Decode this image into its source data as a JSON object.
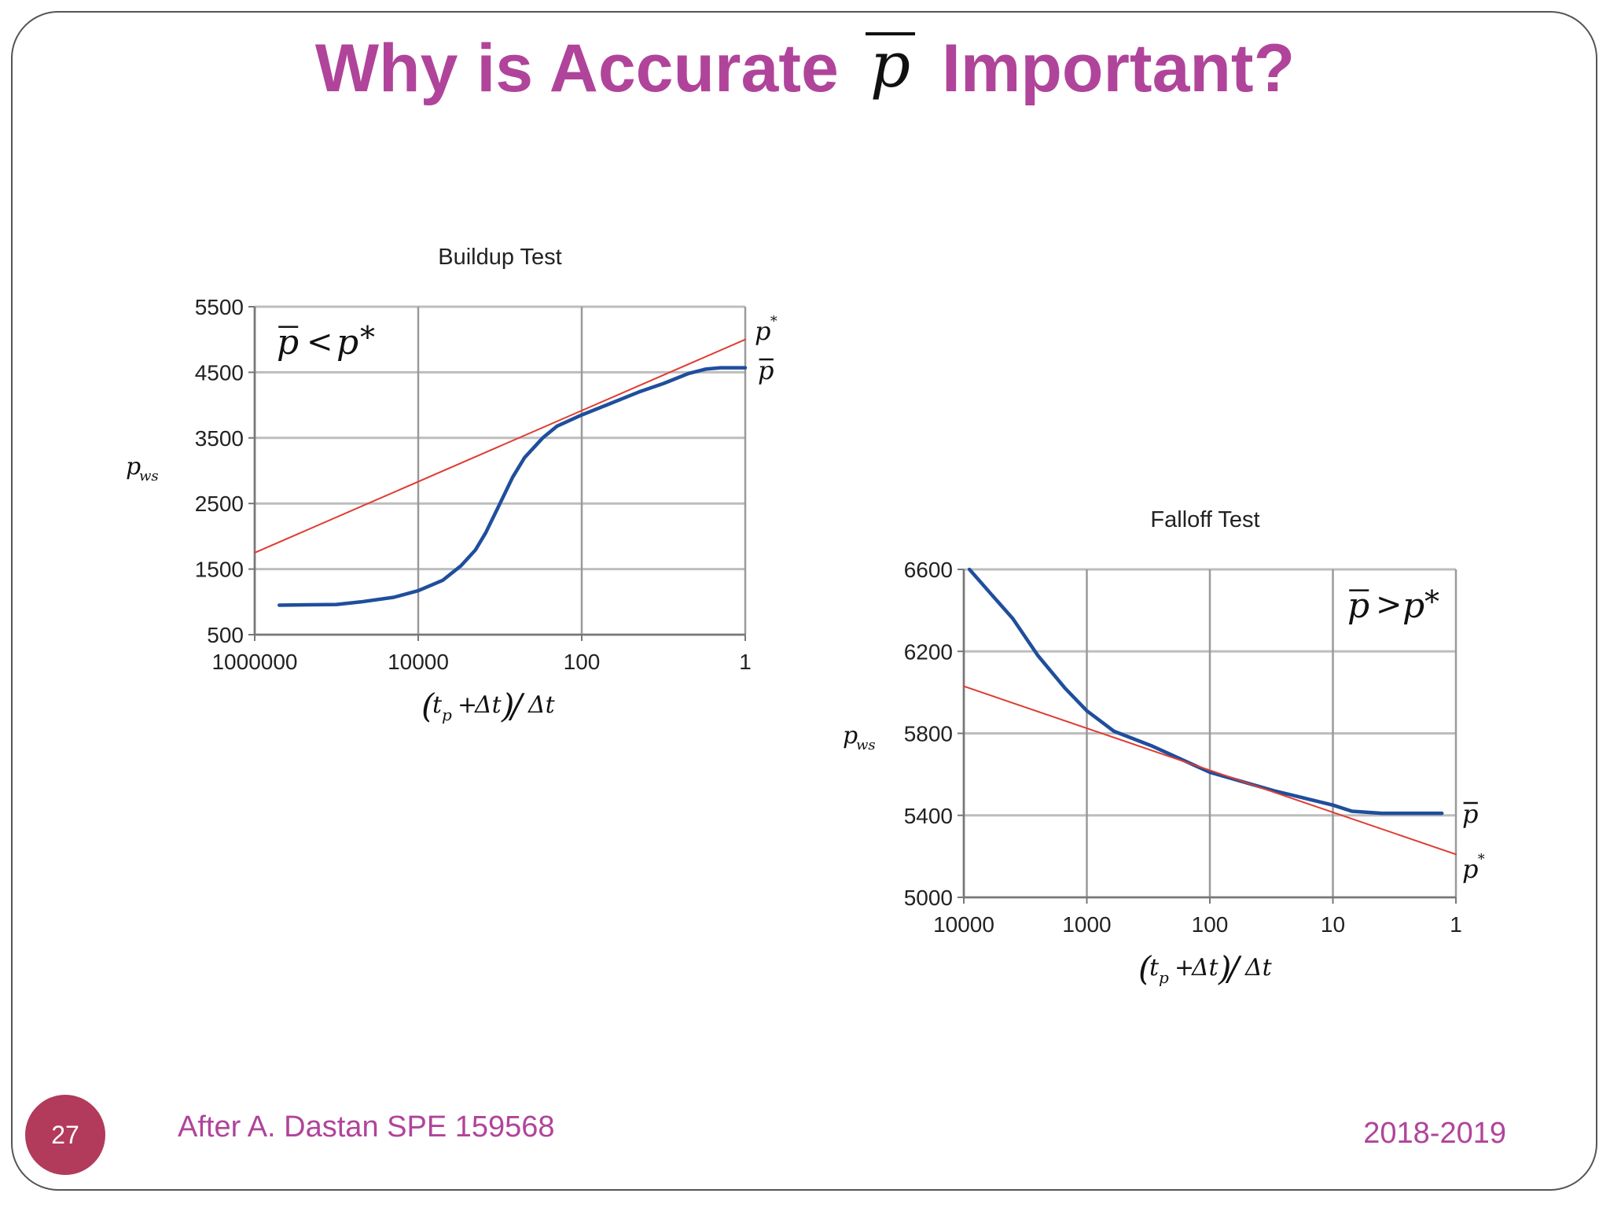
{
  "slide": {
    "title_part1": "Why is Accurate",
    "title_symbol": "p",
    "title_part2": "Important?",
    "page_number": "27",
    "footer_left": "After A. Dastan SPE 159568",
    "footer_right": "2018-2019",
    "accent_color": "#B0449A"
  },
  "chart_data": [
    {
      "type": "line",
      "title": "Buildup Test",
      "ylabel": "p_ws",
      "xlabel": "(t_p + Δt)/Δt",
      "x_scale": "log",
      "x_reversed": true,
      "xlim": [
        1000000,
        1
      ],
      "ylim": [
        500,
        5500
      ],
      "x_ticks": [
        "1000000",
        "10000",
        "100",
        "1"
      ],
      "y_ticks": [
        "5500",
        "4500",
        "3500",
        "2500",
        "1500",
        "500"
      ],
      "grid": true,
      "annotation": "p̄ < p*",
      "right_labels": [
        "p*",
        "p̄"
      ],
      "series": [
        {
          "color": "#1F4E9C",
          "points": [
            [
              500000,
              950
            ],
            [
              100000,
              960
            ],
            [
              50000,
              1000
            ],
            [
              20000,
              1070
            ],
            [
              10000,
              1170
            ],
            [
              5000,
              1330
            ],
            [
              3000,
              1550
            ],
            [
              2000,
              1790
            ],
            [
              1500,
              2050
            ],
            [
              1000,
              2500
            ],
            [
              700,
              2900
            ],
            [
              500,
              3200
            ],
            [
              300,
              3500
            ],
            [
              200,
              3680
            ],
            [
              100,
              3850
            ],
            [
              50,
              4000
            ],
            [
              20,
              4200
            ],
            [
              10,
              4330
            ],
            [
              5,
              4480
            ],
            [
              3,
              4550
            ],
            [
              2,
              4570
            ],
            [
              1,
              4570
            ]
          ]
        },
        {
          "color": "#E03C31",
          "points": [
            [
              1000000,
              1750
            ],
            [
              1,
              5000
            ]
          ]
        }
      ]
    },
    {
      "type": "line",
      "title": "Falloff Test",
      "ylabel": "p_ws",
      "xlabel": "(t_p + Δt)/Δt",
      "x_scale": "log",
      "x_reversed": true,
      "xlim": [
        10000,
        1
      ],
      "ylim": [
        5000,
        6600
      ],
      "x_ticks": [
        "10000",
        "1000",
        "100",
        "10",
        "1"
      ],
      "y_ticks": [
        "6600",
        "6200",
        "5800",
        "5400",
        "5000"
      ],
      "grid": true,
      "annotation": "p̄ > p*",
      "right_labels": [
        "p̄",
        "p*"
      ],
      "series": [
        {
          "color": "#1F4E9C",
          "points": [
            [
              9000,
              6600
            ],
            [
              6000,
              6480
            ],
            [
              4000,
              6360
            ],
            [
              2500,
              6180
            ],
            [
              1500,
              6020
            ],
            [
              1000,
              5910
            ],
            [
              600,
              5810
            ],
            [
              300,
              5740
            ],
            [
              100,
              5610
            ],
            [
              30,
              5520
            ],
            [
              10,
              5450
            ],
            [
              7,
              5420
            ],
            [
              4,
              5410
            ],
            [
              2,
              5410
            ],
            [
              1.3,
              5410
            ]
          ]
        },
        {
          "color": "#E03C31",
          "points": [
            [
              10000,
              6030
            ],
            [
              1,
              5210
            ]
          ]
        }
      ]
    }
  ]
}
